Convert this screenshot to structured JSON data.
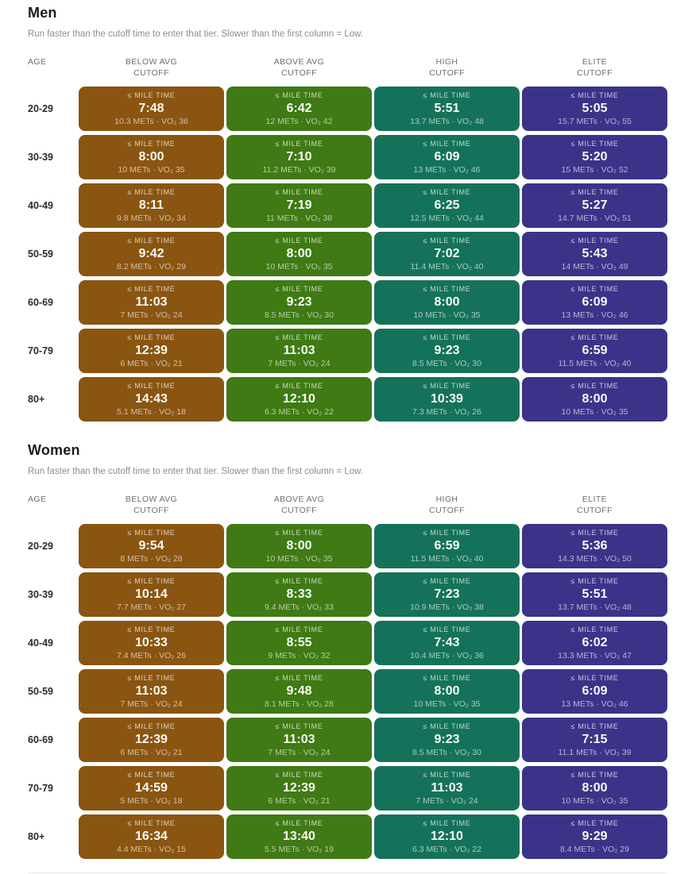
{
  "page": {
    "subtitle": "Run faster than the cutoff time to enter that tier. Slower than the first column = Low.",
    "cell_label": "≤ MILE TIME",
    "columns": {
      "age": "AGE",
      "tiers": [
        {
          "line1": "BELOW AVG",
          "line2": "CUTOFF"
        },
        {
          "line1": "ABOVE AVG",
          "line2": "CUTOFF"
        },
        {
          "line1": "HIGH",
          "line2": "CUTOFF"
        },
        {
          "line1": "ELITE",
          "line2": "CUTOFF"
        }
      ]
    }
  },
  "colors": {
    "below_avg": "#8a5511",
    "above_avg": "#3f7a14",
    "high": "#15725a",
    "elite": "#3b3389"
  },
  "sections": [
    {
      "title": "Men",
      "rows": [
        {
          "age": "20-29",
          "cells": [
            {
              "time": "7:48",
              "mets": "10.3 METs · VO₂ 36"
            },
            {
              "time": "6:42",
              "mets": "12 METs · VO₂ 42"
            },
            {
              "time": "5:51",
              "mets": "13.7 METs · VO₂ 48"
            },
            {
              "time": "5:05",
              "mets": "15.7 METs · VO₂ 55"
            }
          ]
        },
        {
          "age": "30-39",
          "cells": [
            {
              "time": "8:00",
              "mets": "10 METs · VO₂ 35"
            },
            {
              "time": "7:10",
              "mets": "11.2 METs · VO₂ 39"
            },
            {
              "time": "6:09",
              "mets": "13 METs · VO₂ 46"
            },
            {
              "time": "5:20",
              "mets": "15 METs · VO₂ 52"
            }
          ]
        },
        {
          "age": "40-49",
          "cells": [
            {
              "time": "8:11",
              "mets": "9.8 METs · VO₂ 34"
            },
            {
              "time": "7:19",
              "mets": "11 METs · VO₂ 38"
            },
            {
              "time": "6:25",
              "mets": "12.5 METs · VO₂ 44"
            },
            {
              "time": "5:27",
              "mets": "14.7 METs · VO₂ 51"
            }
          ]
        },
        {
          "age": "50-59",
          "cells": [
            {
              "time": "9:42",
              "mets": "8.2 METs · VO₂ 29"
            },
            {
              "time": "8:00",
              "mets": "10 METs · VO₂ 35"
            },
            {
              "time": "7:02",
              "mets": "11.4 METs · VO₂ 40"
            },
            {
              "time": "5:43",
              "mets": "14 METs · VO₂ 49"
            }
          ]
        },
        {
          "age": "60-69",
          "cells": [
            {
              "time": "11:03",
              "mets": "7 METs · VO₂ 24"
            },
            {
              "time": "9:23",
              "mets": "8.5 METs · VO₂ 30"
            },
            {
              "time": "8:00",
              "mets": "10 METs · VO₂ 35"
            },
            {
              "time": "6:09",
              "mets": "13 METs · VO₂ 46"
            }
          ]
        },
        {
          "age": "70-79",
          "cells": [
            {
              "time": "12:39",
              "mets": "6 METs · VO₂ 21"
            },
            {
              "time": "11:03",
              "mets": "7 METs · VO₂ 24"
            },
            {
              "time": "9:23",
              "mets": "8.5 METs · VO₂ 30"
            },
            {
              "time": "6:59",
              "mets": "11.5 METs · VO₂ 40"
            }
          ]
        },
        {
          "age": "80+",
          "cells": [
            {
              "time": "14:43",
              "mets": "5.1 METs · VO₂ 18"
            },
            {
              "time": "12:10",
              "mets": "6.3 METs · VO₂ 22"
            },
            {
              "time": "10:39",
              "mets": "7.3 METs · VO₂ 26"
            },
            {
              "time": "8:00",
              "mets": "10 METs · VO₂ 35"
            }
          ]
        }
      ]
    },
    {
      "title": "Women",
      "rows": [
        {
          "age": "20-29",
          "cells": [
            {
              "time": "9:54",
              "mets": "8 METs · VO₂ 28"
            },
            {
              "time": "8:00",
              "mets": "10 METs · VO₂ 35"
            },
            {
              "time": "6:59",
              "mets": "11.5 METs · VO₂ 40"
            },
            {
              "time": "5:36",
              "mets": "14.3 METs · VO₂ 50"
            }
          ]
        },
        {
          "age": "30-39",
          "cells": [
            {
              "time": "10:14",
              "mets": "7.7 METs · VO₂ 27"
            },
            {
              "time": "8:33",
              "mets": "9.4 METs · VO₂ 33"
            },
            {
              "time": "7:23",
              "mets": "10.9 METs · VO₂ 38"
            },
            {
              "time": "5:51",
              "mets": "13.7 METs · VO₂ 48"
            }
          ]
        },
        {
          "age": "40-49",
          "cells": [
            {
              "time": "10:33",
              "mets": "7.4 METs · VO₂ 26"
            },
            {
              "time": "8:55",
              "mets": "9 METs · VO₂ 32"
            },
            {
              "time": "7:43",
              "mets": "10.4 METs · VO₂ 36"
            },
            {
              "time": "6:02",
              "mets": "13.3 METs · VO₂ 47"
            }
          ]
        },
        {
          "age": "50-59",
          "cells": [
            {
              "time": "11:03",
              "mets": "7 METs · VO₂ 24"
            },
            {
              "time": "9:48",
              "mets": "8.1 METs · VO₂ 28"
            },
            {
              "time": "8:00",
              "mets": "10 METs · VO₂ 35"
            },
            {
              "time": "6:09",
              "mets": "13 METs · VO₂ 46"
            }
          ]
        },
        {
          "age": "60-69",
          "cells": [
            {
              "time": "12:39",
              "mets": "6 METs · VO₂ 21"
            },
            {
              "time": "11:03",
              "mets": "7 METs · VO₂ 24"
            },
            {
              "time": "9:23",
              "mets": "8.5 METs · VO₂ 30"
            },
            {
              "time": "7:15",
              "mets": "11.1 METs · VO₂ 39"
            }
          ]
        },
        {
          "age": "70-79",
          "cells": [
            {
              "time": "14:59",
              "mets": "5 METs · VO₂ 18"
            },
            {
              "time": "12:39",
              "mets": "6 METs · VO₂ 21"
            },
            {
              "time": "11:03",
              "mets": "7 METs · VO₂ 24"
            },
            {
              "time": "8:00",
              "mets": "10 METs · VO₂ 35"
            }
          ]
        },
        {
          "age": "80+",
          "cells": [
            {
              "time": "16:34",
              "mets": "4.4 METs · VO₂ 15"
            },
            {
              "time": "13:40",
              "mets": "5.5 METs · VO₂ 19"
            },
            {
              "time": "12:10",
              "mets": "6.3 METs · VO₂ 22"
            },
            {
              "time": "9:29",
              "mets": "8.4 METs · VO₂ 29"
            }
          ]
        }
      ]
    }
  ]
}
